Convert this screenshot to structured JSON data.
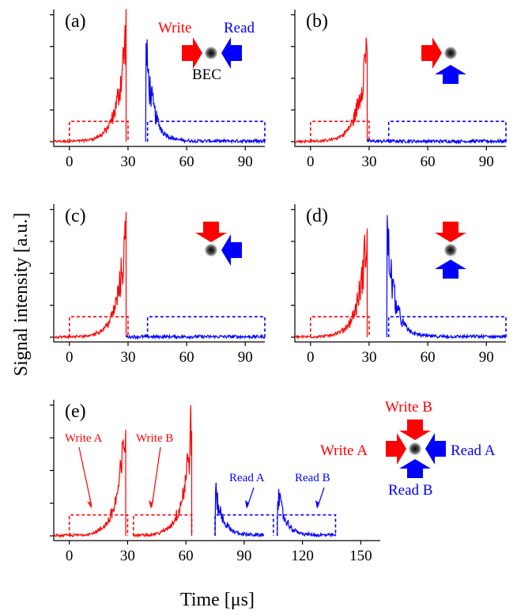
{
  "figure": {
    "ylabel": "Signal intensity [a.u.]",
    "xlabel": "Time [μs]"
  },
  "annotations": {
    "a": {
      "write": "Write",
      "read": "Read",
      "bec": "BEC"
    },
    "e": {
      "write_a": "Write A",
      "write_b": "Write B",
      "read_a": "Read A",
      "read_b": "Read B",
      "legend_write_b": "Write B",
      "legend_write_a": "Write A",
      "legend_read_a": "Read A",
      "legend_read_b": "Read B"
    }
  },
  "colors": {
    "write": "#ff0000",
    "read": "#0000ff",
    "axis": "#000000"
  },
  "chart_data": [
    {
      "type": "line",
      "panel": "(a)",
      "xlim": [
        -8,
        100
      ],
      "xticks": [
        "0",
        "30",
        "60",
        "90"
      ],
      "series": [
        {
          "name": "Write",
          "color": "#ff0000",
          "style": "solid",
          "shape": "exp_rise",
          "x": [
            -8,
            29
          ],
          "peak": 1.0
        },
        {
          "name": "Read",
          "color": "#0000ff",
          "style": "solid",
          "shape": "exp_decay",
          "x": [
            39,
            100
          ],
          "peak": 0.85
        }
      ],
      "gates": [
        {
          "color": "#ff0000",
          "x": [
            0,
            30
          ],
          "level": 0.16
        },
        {
          "color": "#0000ff",
          "x": [
            40,
            100
          ],
          "level": 0.16
        }
      ]
    },
    {
      "type": "line",
      "panel": "(b)",
      "xlim": [
        -8,
        100
      ],
      "xticks": [
        "0",
        "30",
        "60",
        "90"
      ],
      "series": [
        {
          "color": "#ff0000",
          "style": "solid",
          "shape": "exp_rise",
          "x": [
            -8,
            29
          ],
          "peak": 0.95
        },
        {
          "color": "#0000ff",
          "style": "solid",
          "shape": "noise",
          "x": [
            29,
            100
          ],
          "peak": 0.0
        }
      ],
      "gates": [
        {
          "color": "#ff0000",
          "x": [
            0,
            30
          ],
          "level": 0.16
        },
        {
          "color": "#0000ff",
          "x": [
            40,
            100
          ],
          "level": 0.16
        }
      ]
    },
    {
      "type": "line",
      "panel": "(c)",
      "xlim": [
        -8,
        100
      ],
      "xticks": [
        "0",
        "30",
        "60",
        "90"
      ],
      "series": [
        {
          "color": "#ff0000",
          "style": "solid",
          "shape": "exp_rise",
          "x": [
            -8,
            29
          ],
          "peak": 0.95
        },
        {
          "color": "#0000ff",
          "style": "solid",
          "shape": "noise",
          "x": [
            29,
            100
          ],
          "peak": 0.0
        }
      ],
      "gates": [
        {
          "color": "#ff0000",
          "x": [
            0,
            30
          ],
          "level": 0.16
        },
        {
          "color": "#0000ff",
          "x": [
            40,
            100
          ],
          "level": 0.16
        }
      ]
    },
    {
      "type": "line",
      "panel": "(d)",
      "xlim": [
        -8,
        100
      ],
      "xticks": [
        "0",
        "30",
        "60",
        "90"
      ],
      "series": [
        {
          "color": "#ff0000",
          "style": "solid",
          "shape": "exp_rise",
          "x": [
            -8,
            29
          ],
          "peak": 0.95
        },
        {
          "color": "#0000ff",
          "style": "solid",
          "shape": "exp_decay",
          "x": [
            39,
            100
          ],
          "peak": 1.0
        }
      ],
      "gates": [
        {
          "color": "#ff0000",
          "x": [
            0,
            30
          ],
          "level": 0.16
        },
        {
          "color": "#0000ff",
          "x": [
            40,
            100
          ],
          "level": 0.16
        }
      ]
    },
    {
      "type": "line",
      "panel": "(e)",
      "xlim": [
        -8,
        160
      ],
      "xticks": [
        "0",
        "30",
        "60",
        "90",
        "120",
        "150"
      ],
      "series": [
        {
          "color": "#ff0000",
          "style": "solid",
          "shape": "exp_rise",
          "x": [
            -8,
            29
          ],
          "peak": 0.95
        },
        {
          "color": "#ff0000",
          "style": "solid",
          "shape": "exp_rise",
          "x": [
            33,
            63
          ],
          "peak": 1.0
        },
        {
          "color": "#0000ff",
          "style": "solid",
          "shape": "exp_decay",
          "x": [
            75,
            100
          ],
          "peak": 0.4
        },
        {
          "color": "#0000ff",
          "style": "solid",
          "shape": "exp_decay",
          "x": [
            107,
            137
          ],
          "peak": 0.4
        }
      ],
      "gates": [
        {
          "color": "#ff0000",
          "x": [
            0,
            30
          ],
          "level": 0.16
        },
        {
          "color": "#ff0000",
          "x": [
            33,
            63
          ],
          "level": 0.16
        },
        {
          "color": "#0000ff",
          "x": [
            75,
            105
          ],
          "level": 0.16
        },
        {
          "color": "#0000ff",
          "x": [
            107,
            137
          ],
          "level": 0.16
        }
      ]
    }
  ]
}
